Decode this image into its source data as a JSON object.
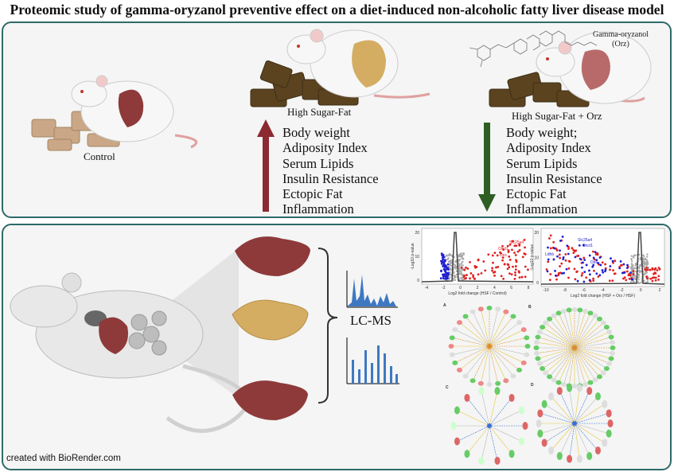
{
  "title": "Proteomic study of gamma-oryzanol preventive effect on a diet-induced non-alcoholic fatty liver disease model",
  "groups": {
    "control": "Control",
    "hsf": "High Sugar-Fat",
    "hsf_orz": "High Sugar-Fat + Orz",
    "compound": "Gamma-oryzanol",
    "compound_abbr": "(Orz)"
  },
  "hsf_effects": [
    "Body weight",
    "Adiposity Index",
    "Serum Lipids",
    "Insulin Resistance",
    "Ectopic Fat",
    "Inflammation"
  ],
  "orz_effects": [
    "Body weight;",
    "Adiposity Index",
    "Serum Lipids",
    "Insulin Resistance",
    "Ectopic Fat",
    "Inflammation"
  ],
  "method": "LC-MS",
  "credit": "created with BioRender.com",
  "volcano1": {
    "xlabel": "Log2 fold change (HSF / Control)",
    "ylabel": "-Log10 p-value",
    "labels": [
      "Slc25a4",
      "Oxct1",
      "Des"
    ],
    "xticks": [
      "-4",
      "-2",
      "0",
      "2",
      "4",
      "6",
      "8"
    ],
    "yticks": [
      "0",
      "10",
      "20"
    ]
  },
  "volcano2": {
    "xlabel": "Log2 fold change (HSF + Orz / HSF)",
    "ylabel": "-Log10 p-value",
    "labels": [
      "Slc25a4",
      "Oxct1",
      "Ldhb",
      "Des"
    ],
    "xticks": [
      "-10",
      "-8",
      "-6",
      "-4",
      "-2",
      "0",
      "2"
    ],
    "yticks": [
      "0",
      "10",
      "20"
    ]
  },
  "networks": [
    "A",
    "B",
    "C",
    "D"
  ],
  "colors": {
    "border": "#2d6a68",
    "up_arrow": "#8c2a32",
    "down_arrow": "#2f5e22",
    "up_points": "#e02020",
    "down_points": "#2020d0",
    "liver": "#8e3a3a",
    "fatty_liver": "#d4ad63",
    "chow": "#5b4320"
  }
}
